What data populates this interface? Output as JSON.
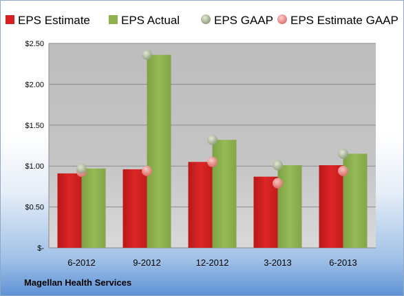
{
  "company": "Magellan Health Services",
  "chart_data": {
    "type": "bar",
    "categories": [
      "6-2012",
      "9-2012",
      "12-2012",
      "3-2013",
      "6-2013"
    ],
    "y_tick_labels": [
      "$-",
      "$0.50",
      "$1.00",
      "$1.50",
      "$2.00",
      "$2.50"
    ],
    "ylim": [
      0,
      2.5
    ],
    "grid": true,
    "legend_position": "top",
    "series": [
      {
        "name": "EPS Estimate",
        "kind": "bar",
        "color": "#d42020",
        "values": [
          0.91,
          0.96,
          1.05,
          0.87,
          1.01
        ]
      },
      {
        "name": "EPS Actual",
        "kind": "bar",
        "color": "#8db24e",
        "values": [
          0.97,
          2.36,
          1.32,
          1.01,
          1.15
        ]
      },
      {
        "name": "EPS GAAP",
        "kind": "marker",
        "color": "#9aab8a",
        "values": [
          0.97,
          2.36,
          1.32,
          1.01,
          1.15
        ]
      },
      {
        "name": "EPS Estimate GAAP",
        "kind": "marker",
        "color": "#ea8a8a",
        "values": [
          0.93,
          0.94,
          1.05,
          0.79,
          0.94
        ]
      }
    ]
  }
}
